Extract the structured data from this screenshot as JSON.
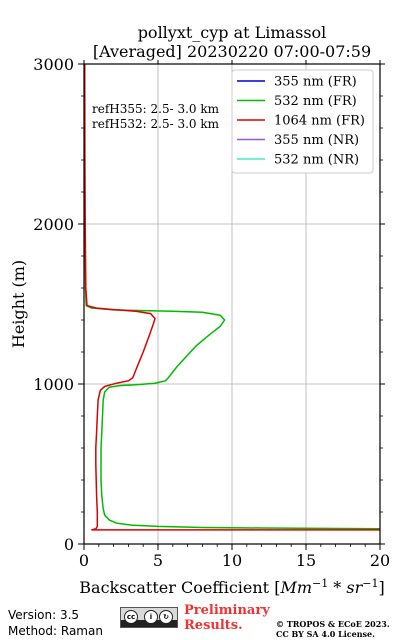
{
  "chart_data": {
    "type": "line",
    "title_line1": "pollyxt_cyp at Limassol",
    "title_line2": "[Averaged] 20230220 07:00-07:59",
    "xlabel": "Backscatter Coefficient [",
    "xlabel_units": "Mm",
    "xlabel_exp1": "−1",
    "xlabel_mid": " * ",
    "xlabel_units2": "sr",
    "xlabel_exp2": "−1",
    "xlabel_end": "]",
    "ylabel": "Height (m)",
    "xlim": [
      0,
      20
    ],
    "ylim": [
      0,
      3000
    ],
    "xticks": [
      0,
      5,
      10,
      15,
      20
    ],
    "yticks": [
      0,
      1000,
      2000,
      3000
    ],
    "grid": true,
    "legend_position": "top-right",
    "annotations": [
      "refH355:  2.5- 3.0 km",
      "refH532:  2.5- 3.0 km"
    ],
    "series": [
      {
        "name": "355 nm (FR)",
        "color": "#0000cc",
        "points": []
      },
      {
        "name": "532 nm (FR)",
        "color": "#00bb00",
        "points": [
          [
            20,
            95
          ],
          [
            12,
            100
          ],
          [
            8,
            103
          ],
          [
            5,
            110
          ],
          [
            3.2,
            118
          ],
          [
            2.2,
            130
          ],
          [
            1.7,
            150
          ],
          [
            1.4,
            180
          ],
          [
            1.3,
            220
          ],
          [
            1.2,
            300
          ],
          [
            1.15,
            400
          ],
          [
            1.15,
            500
          ],
          [
            1.15,
            600
          ],
          [
            1.2,
            700
          ],
          [
            1.25,
            800
          ],
          [
            1.3,
            900
          ],
          [
            1.4,
            950
          ],
          [
            1.7,
            980
          ],
          [
            2.4,
            990
          ],
          [
            3.5,
            995
          ],
          [
            4.8,
            1005
          ],
          [
            5.5,
            1020
          ],
          [
            5.7,
            1040
          ],
          [
            6.3,
            1110
          ],
          [
            6.9,
            1170
          ],
          [
            7.6,
            1240
          ],
          [
            8.5,
            1310
          ],
          [
            9.2,
            1360
          ],
          [
            9.5,
            1400
          ],
          [
            9.2,
            1430
          ],
          [
            8.0,
            1448
          ],
          [
            6.0,
            1455
          ],
          [
            4.0,
            1459
          ],
          [
            2.0,
            1463
          ],
          [
            0.5,
            1475
          ],
          [
            0.15,
            1490
          ],
          [
            0.1,
            1600
          ],
          [
            0.08,
            1800
          ],
          [
            0.06,
            2000
          ],
          [
            0.04,
            2400
          ],
          [
            0.03,
            3000
          ]
        ]
      },
      {
        "name": "1064 nm (FR)",
        "color": "#dd0000",
        "points": [
          [
            20,
            88
          ],
          [
            0.5,
            88
          ],
          [
            0.8,
            95
          ],
          [
            0.9,
            110
          ],
          [
            0.9,
            200
          ],
          [
            0.85,
            300
          ],
          [
            0.8,
            500
          ],
          [
            0.8,
            600
          ],
          [
            0.85,
            700
          ],
          [
            0.9,
            800
          ],
          [
            0.95,
            900
          ],
          [
            1.1,
            960
          ],
          [
            1.4,
            985
          ],
          [
            2.2,
            1005
          ],
          [
            3.0,
            1020
          ],
          [
            3.3,
            1040
          ],
          [
            3.6,
            1110
          ],
          [
            4.0,
            1200
          ],
          [
            4.4,
            1300
          ],
          [
            4.7,
            1380
          ],
          [
            4.8,
            1410
          ],
          [
            4.5,
            1440
          ],
          [
            3.5,
            1455
          ],
          [
            2.0,
            1465
          ],
          [
            0.8,
            1475
          ],
          [
            0.2,
            1490
          ],
          [
            0.12,
            1600
          ],
          [
            0.1,
            1800
          ],
          [
            0.08,
            2000
          ],
          [
            0.06,
            2400
          ],
          [
            0.05,
            3000
          ]
        ]
      },
      {
        "name": "355 nm (NR)",
        "color": "#9955dd",
        "points": []
      },
      {
        "name": "532 nm (NR)",
        "color": "#44eecc",
        "points": []
      }
    ]
  },
  "footer": {
    "version": "Version: 3.5",
    "method": "Method: Raman",
    "preliminary_line1": "Preliminary",
    "preliminary_line2": "Results.",
    "copyright_line1": "© TROPOS & ECoE 2023.",
    "copyright_line2": "CC BY SA 4.0 License.",
    "license_logo": "cc-by-sa-logo"
  }
}
